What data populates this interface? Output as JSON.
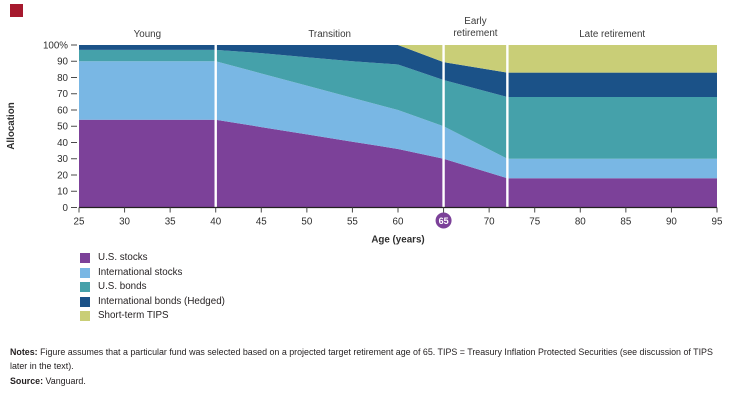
{
  "figure": {
    "bullet_color": "#A6192E"
  },
  "chart_data": {
    "type": "area",
    "stacked": true,
    "xlabel": "Age (years)",
    "ylabel": "Allocation",
    "xlim": [
      25,
      95
    ],
    "ylim": [
      0,
      100
    ],
    "grid": false,
    "x": [
      25,
      40,
      45,
      50,
      55,
      60,
      65,
      72,
      95
    ],
    "series": [
      {
        "name": "U.S. stocks",
        "color": "#7C4199",
        "values": [
          54,
          54,
          49.5,
          45,
          40.5,
          36,
          30,
          18,
          18
        ]
      },
      {
        "name": "International stocks",
        "color": "#79B7E4",
        "values": [
          36,
          36,
          33,
          30,
          27,
          24,
          20,
          12,
          12
        ]
      },
      {
        "name": "U.S. bonds",
        "color": "#45A1AA",
        "values": [
          7,
          7,
          12.5,
          17.5,
          22.5,
          28,
          28.5,
          38,
          38
        ]
      },
      {
        "name": "International bonds (Hedged)",
        "color": "#1B5288",
        "values": [
          3,
          3,
          5,
          7.5,
          10,
          12,
          11,
          15,
          15
        ]
      },
      {
        "name": "Short-term TIPS",
        "color": "#C9CE77",
        "values": [
          0,
          0,
          0,
          0,
          0,
          0,
          10.5,
          17,
          17
        ]
      }
    ],
    "x_ticks": [
      25,
      30,
      35,
      40,
      45,
      50,
      55,
      60,
      65,
      70,
      75,
      80,
      85,
      90,
      95
    ],
    "y_ticks": [
      "100%",
      "90",
      "80",
      "70",
      "60",
      "50",
      "40",
      "30",
      "20",
      "10",
      "0"
    ],
    "highlight_age": 65,
    "highlight_color": "#7C4199",
    "phase_dividers": [
      40,
      65,
      72
    ],
    "divider_color": "#ffffff",
    "phases": [
      {
        "label": "Young",
        "from": 25,
        "to": 40,
        "two_line": false
      },
      {
        "label": "Transition",
        "from": 40,
        "to": 65,
        "two_line": false
      },
      {
        "label": "Early retirement",
        "from": 65,
        "to": 72,
        "two_line": true
      },
      {
        "label": "Late retirement",
        "from": 72,
        "to": 95,
        "two_line": false
      }
    ],
    "legend_position": "bottom-left"
  },
  "legend": {
    "items": [
      {
        "label": "U.S. stocks",
        "color": "#7C4199"
      },
      {
        "label": "International stocks",
        "color": "#79B7E4"
      },
      {
        "label": "U.S. bonds",
        "color": "#45A1AA"
      },
      {
        "label": "International bonds (Hedged)",
        "color": "#1B5288"
      },
      {
        "label": "Short-term TIPS",
        "color": "#C9CE77"
      }
    ]
  },
  "notes": {
    "notes_label": "Notes:",
    "notes_text": "Figure assumes that a particular fund was selected based on a projected target retirement age of 65. TIPS = Treasury Inflation Protected Securities (see discussion of TIPS later in the text).",
    "source_label": "Source:",
    "source_text": "Vanguard."
  }
}
